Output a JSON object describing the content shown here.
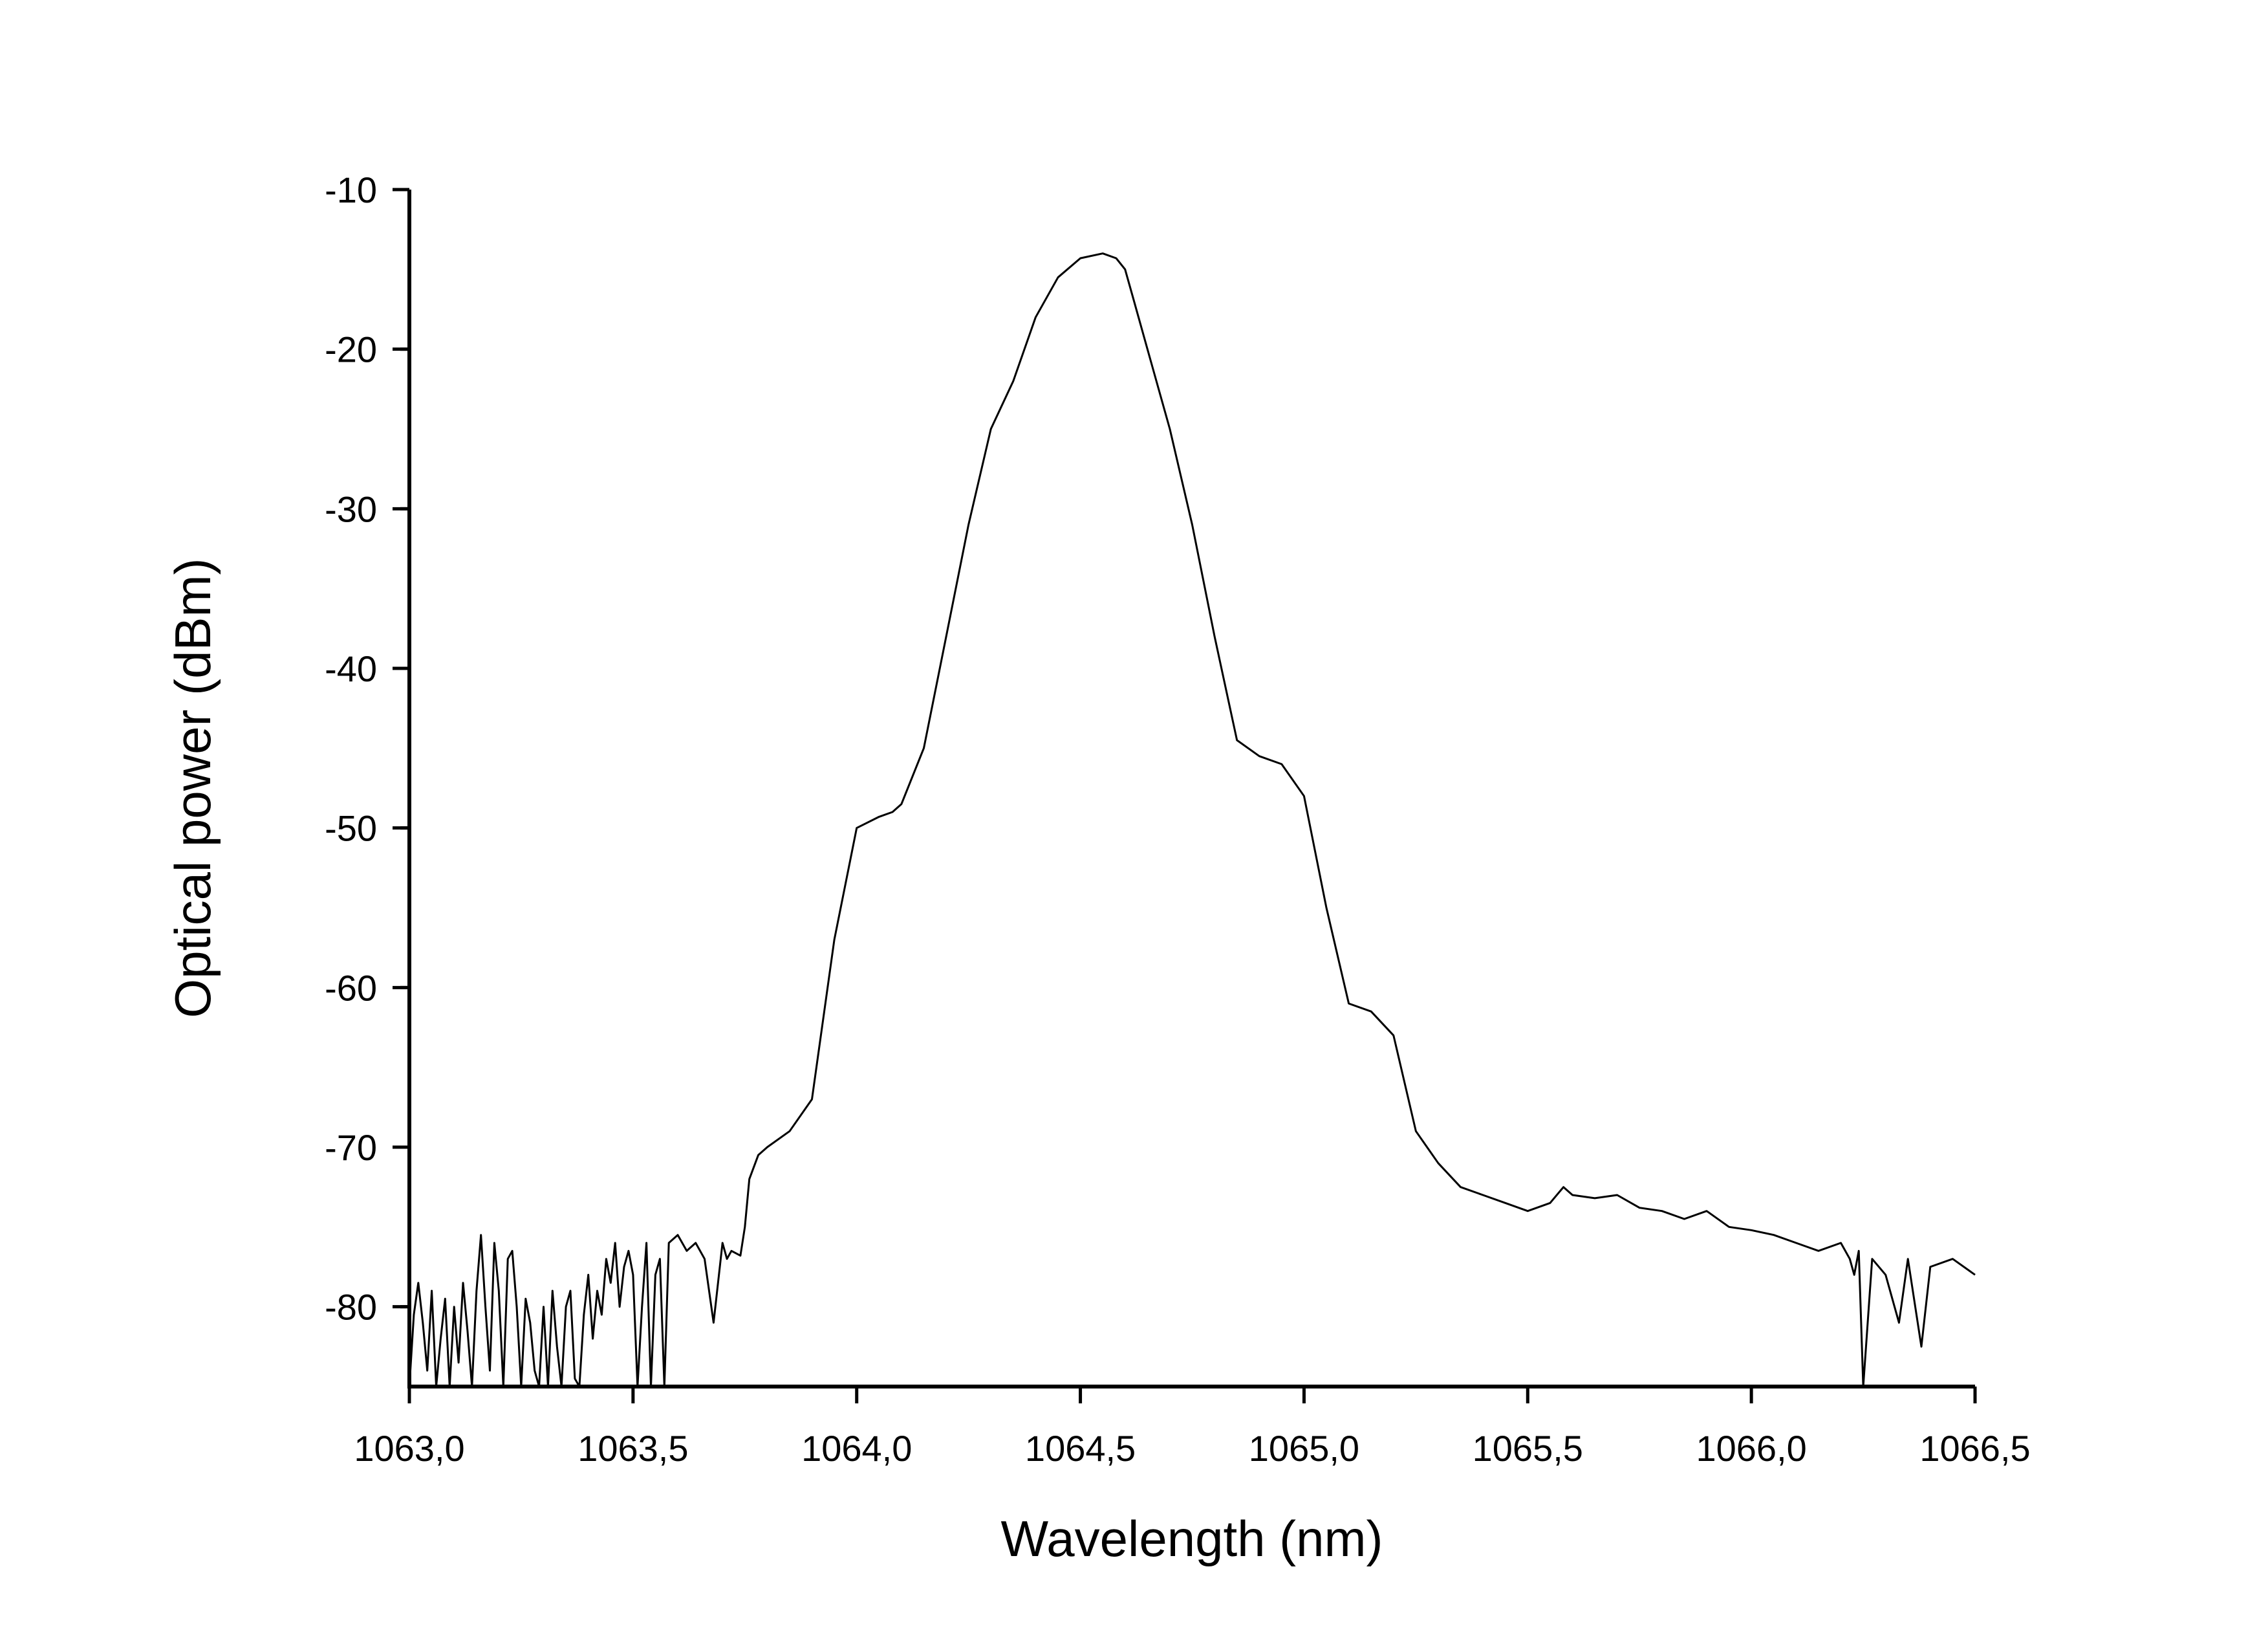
{
  "chart_data": {
    "type": "line",
    "title": "",
    "xlabel": "Wavelength (nm)",
    "ylabel": "Optical power (dBm)",
    "xlim": [
      1063.0,
      1066.5
    ],
    "ylim": [
      -85,
      -10
    ],
    "grid": false,
    "legend": "none",
    "x_ticks": [
      1063.0,
      1063.5,
      1064.0,
      1064.5,
      1065.0,
      1065.5,
      1066.0,
      1066.5
    ],
    "x_tick_labels": [
      "1063,0",
      "1063,5",
      "1064,0",
      "1064,5",
      "1065,0",
      "1065,5",
      "1066,0",
      "1066,5"
    ],
    "y_ticks": [
      -80,
      -70,
      -60,
      -50,
      -40,
      -30,
      -20,
      -10
    ],
    "y_tick_labels": [
      "-80",
      "-70",
      "-60",
      "-50",
      "-40",
      "-30",
      "-20",
      "-10"
    ],
    "y_minor_step": 5,
    "line_color": "#000000",
    "series": [
      {
        "x": [
          1063.0,
          1063.01,
          1063.02,
          1063.03,
          1063.04,
          1063.05,
          1063.06,
          1063.07,
          1063.08,
          1063.09,
          1063.1,
          1063.11,
          1063.12,
          1063.13,
          1063.14,
          1063.15,
          1063.16,
          1063.17,
          1063.18,
          1063.19,
          1063.2,
          1063.21,
          1063.22,
          1063.23,
          1063.24,
          1063.25,
          1063.26,
          1063.27,
          1063.28,
          1063.29,
          1063.3,
          1063.31,
          1063.32,
          1063.33,
          1063.34,
          1063.35,
          1063.36,
          1063.37,
          1063.38,
          1063.39,
          1063.4,
          1063.41,
          1063.42,
          1063.43,
          1063.44,
          1063.45,
          1063.46,
          1063.47,
          1063.48,
          1063.49,
          1063.5,
          1063.51,
          1063.52,
          1063.53,
          1063.54,
          1063.55,
          1063.56,
          1063.57,
          1063.58,
          1063.6,
          1063.62,
          1063.64,
          1063.66,
          1063.68,
          1063.7,
          1063.71,
          1063.72,
          1063.74,
          1063.75,
          1063.76,
          1063.78,
          1063.8,
          1063.85,
          1063.9,
          1063.95,
          1064.0,
          1064.05,
          1064.08,
          1064.1,
          1064.15,
          1064.2,
          1064.25,
          1064.3,
          1064.35,
          1064.4,
          1064.45,
          1064.5,
          1064.55,
          1064.58,
          1064.6,
          1064.62,
          1064.65,
          1064.7,
          1064.75,
          1064.8,
          1064.85,
          1064.9,
          1064.95,
          1065.0,
          1065.05,
          1065.1,
          1065.15,
          1065.2,
          1065.25,
          1065.3,
          1065.35,
          1065.4,
          1065.45,
          1065.5,
          1065.55,
          1065.58,
          1065.6,
          1065.65,
          1065.7,
          1065.75,
          1065.8,
          1065.85,
          1065.9,
          1065.95,
          1066.0,
          1066.05,
          1066.1,
          1066.15,
          1066.2,
          1066.22,
          1066.23,
          1066.24,
          1066.25,
          1066.27,
          1066.3,
          1066.33,
          1066.35,
          1066.38,
          1066.4,
          1066.45,
          1066.5
        ],
        "y": [
          -85.0,
          -80.5,
          -78.5,
          -81.0,
          -84.0,
          -79.0,
          -85.0,
          -82.0,
          -79.5,
          -85.0,
          -80.0,
          -83.5,
          -78.5,
          -81.5,
          -85.0,
          -79.0,
          -75.5,
          -80.0,
          -84.0,
          -76.0,
          -79.0,
          -85.0,
          -77.0,
          -76.5,
          -80.0,
          -85.0,
          -79.5,
          -81.0,
          -84.0,
          -85.0,
          -80.0,
          -85.0,
          -79.0,
          -82.5,
          -85.0,
          -80.0,
          -79.0,
          -84.5,
          -85.0,
          -80.5,
          -78.0,
          -82.0,
          -79.0,
          -80.5,
          -77.0,
          -78.5,
          -76.0,
          -80.0,
          -77.5,
          -76.5,
          -78.0,
          -85.0,
          -80.0,
          -76.0,
          -85.0,
          -78.0,
          -77.0,
          -85.0,
          -76.0,
          -75.5,
          -76.5,
          -76.0,
          -77.0,
          -81.0,
          -76.0,
          -77.0,
          -76.5,
          -76.8,
          -75.0,
          -72.0,
          -70.5,
          -70.0,
          -69.0,
          -67.0,
          -57.0,
          -50.0,
          -49.3,
          -49.0,
          -48.5,
          -45.0,
          -38.0,
          -31.0,
          -25.0,
          -22.0,
          -18.0,
          -15.5,
          -14.3,
          -14.0,
          -14.3,
          -15.0,
          -17.0,
          -20.0,
          -25.0,
          -31.0,
          -38.0,
          -44.5,
          -45.5,
          -46.0,
          -48.0,
          -55.0,
          -61.0,
          -61.5,
          -63.0,
          -69.0,
          -71.0,
          -72.5,
          -73.0,
          -73.5,
          -74.0,
          -73.5,
          -72.5,
          -73.0,
          -73.2,
          -73.0,
          -73.8,
          -74.0,
          -74.5,
          -74.0,
          -75.0,
          -75.2,
          -75.5,
          -76.0,
          -76.5,
          -76.0,
          -77.0,
          -78.0,
          -76.5,
          -85.0,
          -77.0,
          -78.0,
          -81.0,
          -77.0,
          -82.5,
          -77.5,
          -77.0,
          -78.0
        ]
      }
    ]
  }
}
